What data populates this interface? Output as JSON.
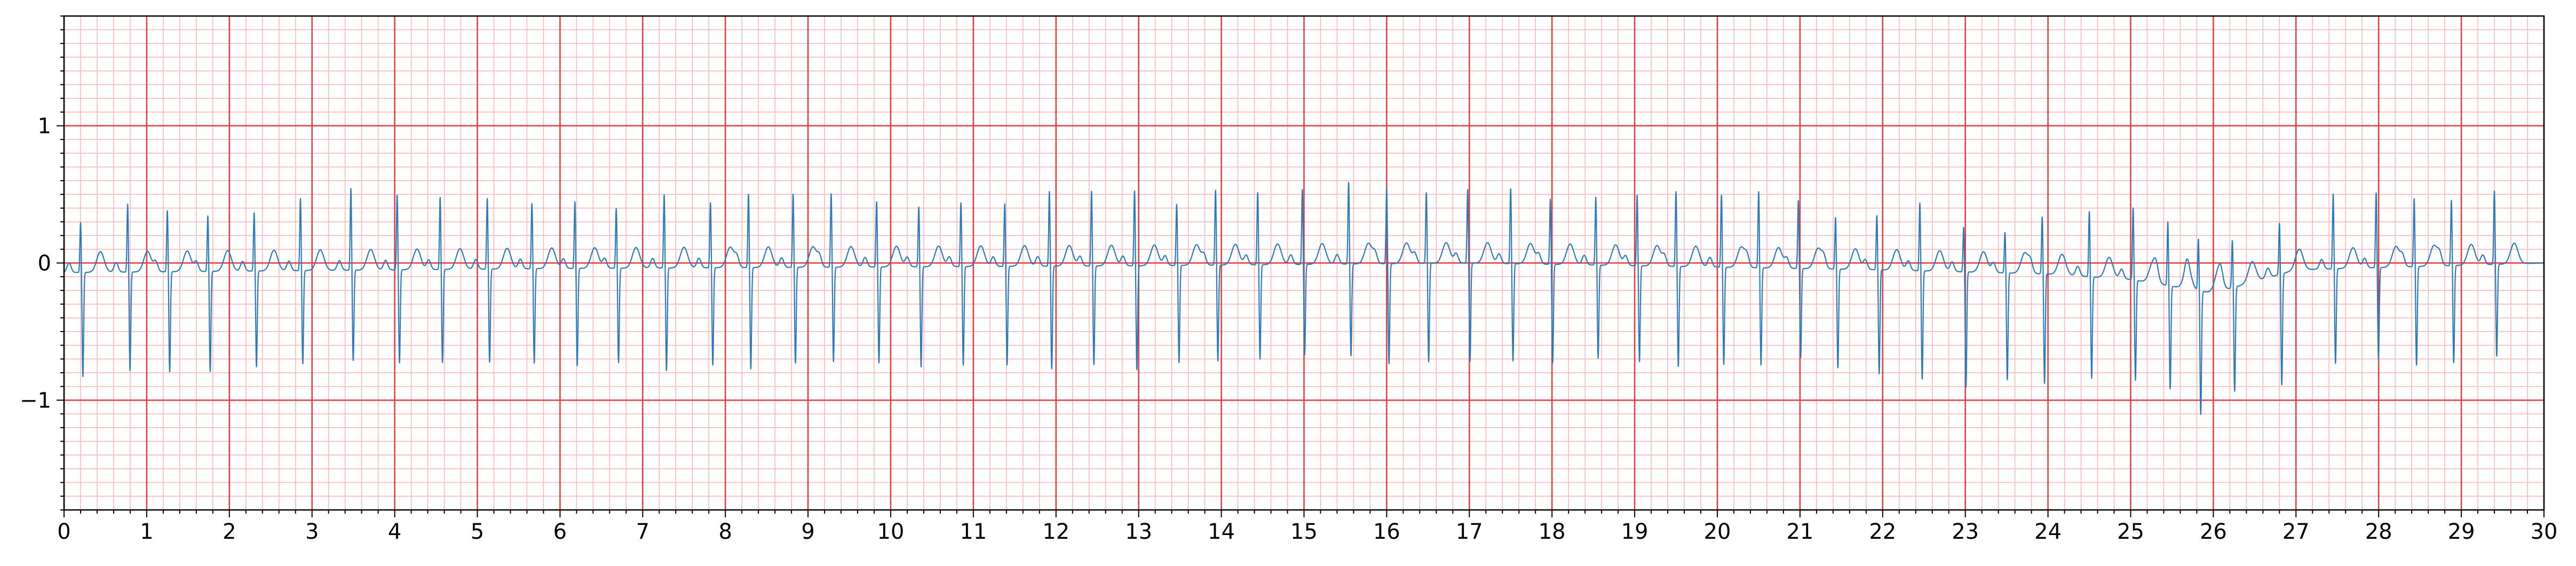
{
  "chart_data": {
    "type": "line",
    "title": "",
    "xlabel": "",
    "ylabel": "",
    "xlim": [
      0,
      30
    ],
    "ylim": [
      -1.8,
      1.8
    ],
    "x_ticks": [
      0,
      1,
      2,
      3,
      4,
      5,
      6,
      7,
      8,
      9,
      10,
      11,
      12,
      13,
      14,
      15,
      16,
      17,
      18,
      19,
      20,
      21,
      22,
      23,
      24,
      25,
      26,
      27,
      28,
      29,
      30
    ],
    "y_ticks": [
      -1,
      0,
      1
    ],
    "y_tick_labels": [
      "−1",
      "0",
      "1"
    ],
    "grid": {
      "major": true,
      "minor": true,
      "major_x_step": 1,
      "major_y_step": 1,
      "minor_x_step": 0.2,
      "minor_y_step": 0.1,
      "major_color": "#e8383c",
      "minor_color": "#f9b9b9"
    },
    "series": [
      {
        "color": "#2b7bba",
        "beat_times": [
          0.2,
          0.77,
          1.25,
          1.74,
          2.3,
          2.86,
          3.47,
          4.03,
          4.55,
          5.12,
          5.66,
          6.18,
          6.68,
          7.26,
          7.82,
          8.28,
          8.82,
          9.28,
          9.83,
          10.34,
          10.85,
          11.38,
          11.92,
          12.43,
          12.95,
          13.46,
          13.93,
          14.44,
          14.98,
          15.54,
          16.0,
          16.48,
          16.98,
          17.5,
          17.98,
          18.53,
          19.03,
          19.5,
          20.05,
          20.5,
          20.98,
          21.43,
          21.93,
          22.45,
          22.98,
          23.48,
          23.93,
          24.5,
          25.03,
          25.45,
          25.82,
          26.23,
          26.8,
          27.45,
          27.97,
          28.43,
          28.88,
          29.4
        ],
        "r_peaks": [
          0.37,
          0.5,
          0.45,
          0.41,
          0.43,
          0.53,
          0.6,
          0.55,
          0.53,
          0.52,
          0.48,
          0.49,
          0.44,
          0.54,
          0.48,
          0.54,
          0.54,
          0.54,
          0.48,
          0.44,
          0.47,
          0.46,
          0.55,
          0.55,
          0.55,
          0.45,
          0.55,
          0.53,
          0.55,
          0.6,
          0.55,
          0.52,
          0.54,
          0.55,
          0.48,
          0.5,
          0.52,
          0.55,
          0.53,
          0.56,
          0.5,
          0.38,
          0.4,
          0.5,
          0.33,
          0.3,
          0.42,
          0.48,
          0.53,
          0.47,
          0.38,
          0.35,
          0.38,
          0.55,
          0.55,
          0.5,
          0.48,
          0.54
        ],
        "s_troughs": [
          -0.76,
          -0.72,
          -0.73,
          -0.73,
          -0.7,
          -0.68,
          -0.66,
          -0.68,
          -0.68,
          -0.68,
          -0.69,
          -0.71,
          -0.69,
          -0.75,
          -0.71,
          -0.74,
          -0.7,
          -0.69,
          -0.7,
          -0.73,
          -0.72,
          -0.72,
          -0.75,
          -0.72,
          -0.76,
          -0.71,
          -0.7,
          -0.69,
          -0.66,
          -0.67,
          -0.73,
          -0.72,
          -0.72,
          -0.71,
          -0.72,
          -0.68,
          -0.7,
          -0.73,
          -0.71,
          -0.71,
          -0.65,
          -0.72,
          -0.76,
          -0.79,
          -0.84,
          -0.78,
          -0.8,
          -0.74,
          -0.73,
          -0.75,
          -0.9,
          -0.76,
          -0.81,
          -0.69,
          -0.67,
          -0.72,
          -0.71,
          -0.67
        ],
        "t_peak": 0.15,
        "baseline": [
          [
            0,
            -0.07
          ],
          [
            6,
            -0.04
          ],
          [
            13,
            -0.02
          ],
          [
            17,
            0.0
          ],
          [
            20,
            -0.03
          ],
          [
            22,
            -0.05
          ],
          [
            24,
            -0.08
          ],
          [
            25,
            -0.12
          ],
          [
            26,
            -0.22
          ],
          [
            27,
            -0.05
          ],
          [
            30,
            0.0
          ]
        ]
      }
    ]
  }
}
